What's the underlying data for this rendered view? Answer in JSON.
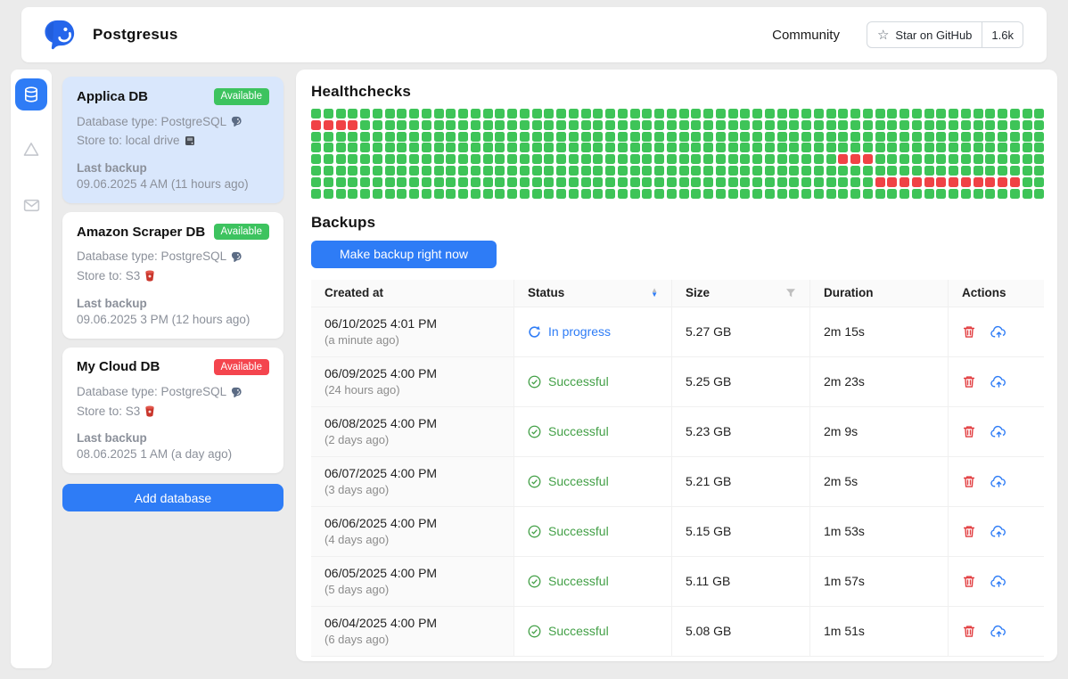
{
  "header": {
    "app_name": "Postgresus",
    "community_label": "Community",
    "github": {
      "star_label": "Star on GitHub",
      "count": "1.6k"
    }
  },
  "colors": {
    "accent_blue": "#2e7cf6",
    "healthy_green": "#3ec458",
    "failed_red": "#f04245",
    "badge_green": "#3dc35f",
    "badge_red": "#f4454e",
    "success_text": "#43a047",
    "selected_card_bg": "#d9e7fc"
  },
  "sidebar": {
    "items": [
      {
        "name": "databases",
        "icon": "database-icon",
        "active": true
      },
      {
        "name": "storage",
        "icon": "drive-icon",
        "active": false
      },
      {
        "name": "notifications",
        "icon": "mail-icon",
        "active": false
      }
    ]
  },
  "databases": {
    "cards": [
      {
        "name": "Applica DB",
        "badge": "Available",
        "badge_color": "green",
        "db_type_label": "Database type: PostgreSQL",
        "store_label": "Store to: local drive",
        "store_icon": "local-drive",
        "last_backup_label": "Last backup",
        "last_backup_value": "09.06.2025 4 AM (11 hours ago)",
        "selected": true
      },
      {
        "name": "Amazon Scraper DB",
        "badge": "Available",
        "badge_color": "green",
        "db_type_label": "Database type: PostgreSQL",
        "store_label": "Store to: S3",
        "store_icon": "s3",
        "last_backup_label": "Last backup",
        "last_backup_value": "09.06.2025 3 PM (12 hours ago)",
        "selected": false
      },
      {
        "name": "My Cloud DB",
        "badge": "Available",
        "badge_color": "red",
        "db_type_label": "Database type: PostgreSQL",
        "store_label": "Store to: S3",
        "store_icon": "s3",
        "last_backup_label": "Last backup",
        "last_backup_value": "08.06.2025 1 AM (a day ago)",
        "selected": false
      }
    ],
    "add_button_label": "Add database"
  },
  "healthchecks": {
    "title": "Healthchecks",
    "rows": 8,
    "cols": 60,
    "failed_runs": [
      {
        "row": 1,
        "from": 0,
        "to": 3
      },
      {
        "row": 4,
        "from": 43,
        "to": 45
      },
      {
        "row": 6,
        "from": 46,
        "to": 57
      }
    ]
  },
  "backups": {
    "title": "Backups",
    "make_backup_label": "Make backup right now",
    "table": {
      "columns": [
        "Created at",
        "Status",
        "Size",
        "Duration",
        "Actions"
      ],
      "rows": [
        {
          "date": "06/10/2025 4:01 PM",
          "ago": "(a minute ago)",
          "status": "In progress",
          "status_type": "in_progress",
          "size": "5.27 GB",
          "duration": "2m 15s"
        },
        {
          "date": "06/09/2025 4:00 PM",
          "ago": "(24 hours ago)",
          "status": "Successful",
          "status_type": "successful",
          "size": "5.25 GB",
          "duration": "2m 23s"
        },
        {
          "date": "06/08/2025 4:00 PM",
          "ago": "(2 days ago)",
          "status": "Successful",
          "status_type": "successful",
          "size": "5.23 GB",
          "duration": "2m 9s"
        },
        {
          "date": "06/07/2025 4:00 PM",
          "ago": "(3 days ago)",
          "status": "Successful",
          "status_type": "successful",
          "size": "5.21 GB",
          "duration": "2m 5s"
        },
        {
          "date": "06/06/2025 4:00 PM",
          "ago": "(4 days ago)",
          "status": "Successful",
          "status_type": "successful",
          "size": "5.15 GB",
          "duration": "1m 53s"
        },
        {
          "date": "06/05/2025 4:00 PM",
          "ago": "(5 days ago)",
          "status": "Successful",
          "status_type": "successful",
          "size": "5.11 GB",
          "duration": "1m 57s"
        },
        {
          "date": "06/04/2025 4:00 PM",
          "ago": "(6 days ago)",
          "status": "Successful",
          "status_type": "successful",
          "size": "5.08 GB",
          "duration": "1m 51s"
        }
      ]
    }
  }
}
